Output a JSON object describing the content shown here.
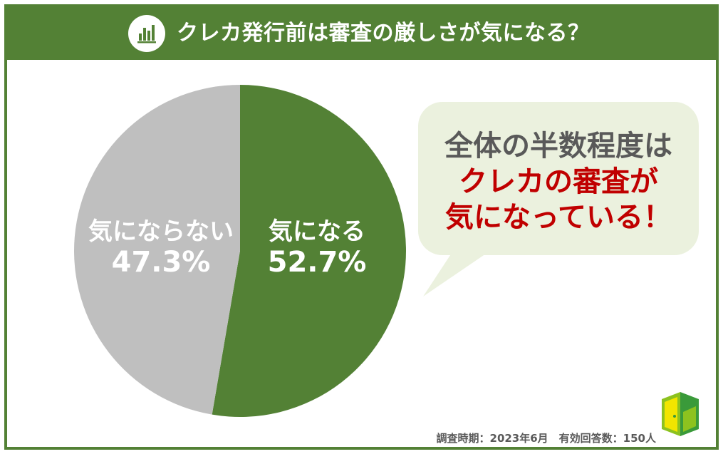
{
  "header": {
    "title": "クレカ発行前は審査の厳しさが気になる？",
    "icon": "bar-chart-icon"
  },
  "chart_data": {
    "type": "pie",
    "slices": [
      {
        "label": "気になる",
        "value": 52.7,
        "value_text": "52.7%",
        "color": "#538135"
      },
      {
        "label": "気にならない",
        "value": 47.3,
        "value_text": "47.3%",
        "color": "#bfbfbf"
      }
    ],
    "start": "12 o'clock",
    "direction": "clockwise"
  },
  "callout": {
    "line1": "全体の半数程度は",
    "line2": "クレカの審査が",
    "line3": "気になっている！",
    "background": "#ebf1de"
  },
  "footnote": "調査時期：2023年6月　有効回答数：150人",
  "logo": {
    "icon": "door-logo-icon"
  },
  "colors": {
    "brand_green": "#538135",
    "accent_red": "#c00000",
    "neutral_gray": "#bfbfbf"
  }
}
